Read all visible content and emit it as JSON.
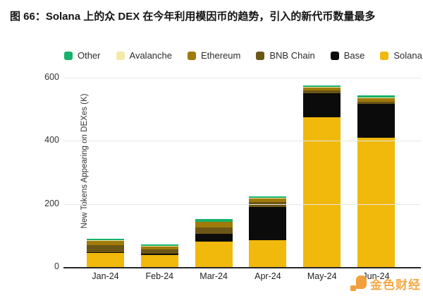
{
  "page": {
    "title": "图 66：Solana 上的众 DEX 在今年利用模因币的趋势，引入的新代币数量最多"
  },
  "watermark": {
    "text": "金色财经",
    "color": "#F2A238"
  },
  "legend": {
    "items": [
      {
        "label": "Other",
        "color": "#17B26A"
      },
      {
        "label": "Avalanche",
        "color": "#F5E8A8"
      },
      {
        "label": "Ethereum",
        "color": "#A07B0B"
      },
      {
        "label": "BNB Chain",
        "color": "#6B5616"
      },
      {
        "label": "Base",
        "color": "#0B0B0B"
      },
      {
        "label": "Solana",
        "color": "#F0B90B"
      }
    ]
  },
  "chart_data": {
    "type": "bar",
    "stacked": true,
    "title": "图 66：Solana 上的众 DEX 在今年利用模因币的趋势，引入的新代币数量最多",
    "categories": [
      "Jan-24",
      "Feb-24",
      "Mar-24",
      "Apr-24",
      "May-24",
      "Jun-24"
    ],
    "series": [
      {
        "name": "Solana",
        "color": "#F0B90B",
        "values": [
          44,
          38,
          80,
          85,
          473,
          410
        ]
      },
      {
        "name": "Base",
        "color": "#0B0B0B",
        "values": [
          4,
          4,
          25,
          106,
          77,
          106
        ]
      },
      {
        "name": "BNB Chain",
        "color": "#6B5616",
        "values": [
          22,
          14,
          20,
          14,
          9,
          8
        ]
      },
      {
        "name": "Ethereum",
        "color": "#A07B0B",
        "values": [
          13,
          10,
          17,
          12,
          9,
          10
        ]
      },
      {
        "name": "Avalanche",
        "color": "#F5E8A8",
        "values": [
          2,
          2,
          2,
          2,
          2,
          2
        ]
      },
      {
        "name": "Other",
        "color": "#17B26A",
        "values": [
          4,
          3,
          7,
          5,
          5,
          7
        ]
      }
    ],
    "totals": [
      89,
      71,
      151,
      224,
      575,
      543
    ],
    "xlabel": "",
    "ylabel": "New Tokens Appearing on DEXes (K)",
    "yticks": [
      0,
      200,
      400,
      600
    ],
    "ylim": [
      0,
      600
    ],
    "grid": true,
    "legend_position": "top"
  }
}
